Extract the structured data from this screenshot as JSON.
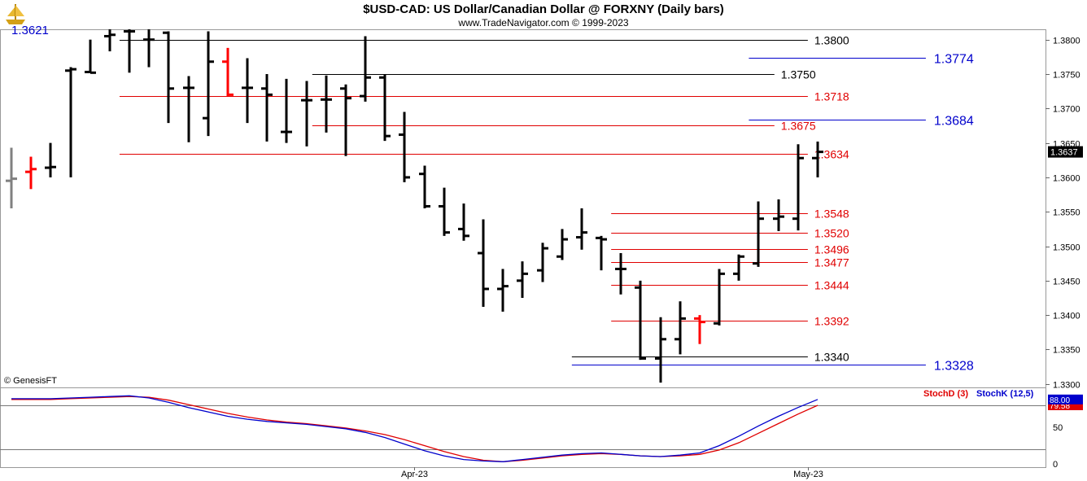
{
  "header": {
    "title": "$USD-CAD:  US Dollar/Canadian Dollar @ FORXNY  (Daily bars)",
    "subtitle": "www.TradeNavigator.com © 1999-2023",
    "logo_icon": "trade-navigator-ship-icon"
  },
  "footer": {
    "credit": "© GenesisFT"
  },
  "colors": {
    "bar": "#000000",
    "bar_down_red": "#ff0000",
    "bar_grey": "#808080",
    "line_black": "#000000",
    "line_red": "#e00000",
    "line_blue": "#0000cc",
    "stoch_d": "#e00000",
    "stoch_k": "#0000cc",
    "price_badge_bg": "#000000"
  },
  "chart_data": [
    {
      "type": "ohlc",
      "title": "$USD-CAD:  US Dollar/Canadian Dollar @ FORXNY  (Daily bars)",
      "price_axis": {
        "ylim": [
          1.3295,
          1.3815
        ],
        "ticks": [
          "1.3800",
          "1.3750",
          "1.3700",
          "1.3650",
          "1.3600",
          "1.3550",
          "1.3500",
          "1.3450",
          "1.3400",
          "1.3350",
          "1.3300"
        ]
      },
      "date_axis": {
        "labels": [
          {
            "text": "Apr-23",
            "index": 20.5
          },
          {
            "text": "May-23",
            "index": 40.5
          }
        ]
      },
      "last_price": "1.3637",
      "corner_label": "1.3621",
      "bars": [
        {
          "o": 1.3595,
          "h": 1.3643,
          "l": 1.3555,
          "c": 1.3598,
          "color": "grey"
        },
        {
          "o": 1.3608,
          "h": 1.363,
          "l": 1.3583,
          "c": 1.3612,
          "color": "red"
        },
        {
          "o": 1.3614,
          "h": 1.365,
          "l": 1.36,
          "c": 1.3615,
          "color": "black"
        },
        {
          "o": 1.3755,
          "h": 1.376,
          "l": 1.36,
          "c": 1.3757,
          "color": "black"
        },
        {
          "o": 1.3753,
          "h": 1.38,
          "l": 1.3752,
          "c": 1.3752,
          "color": "black"
        },
        {
          "o": 1.3805,
          "h": 1.3815,
          "l": 1.3783,
          "c": 1.3807,
          "color": "black"
        },
        {
          "o": 1.3812,
          "h": 1.3815,
          "l": 1.3752,
          "c": 1.3812,
          "color": "black"
        },
        {
          "o": 1.38,
          "h": 1.3815,
          "l": 1.376,
          "c": 1.38,
          "color": "black"
        },
        {
          "o": 1.381,
          "h": 1.3812,
          "l": 1.3679,
          "c": 1.3729,
          "color": "black"
        },
        {
          "o": 1.373,
          "h": 1.3747,
          "l": 1.3651,
          "c": 1.373,
          "color": "black"
        },
        {
          "o": 1.3686,
          "h": 1.3812,
          "l": 1.366,
          "c": 1.3768,
          "color": "black"
        },
        {
          "o": 1.3768,
          "h": 1.3788,
          "l": 1.3718,
          "c": 1.372,
          "color": "red"
        },
        {
          "o": 1.373,
          "h": 1.3773,
          "l": 1.3679,
          "c": 1.373,
          "color": "black"
        },
        {
          "o": 1.3729,
          "h": 1.375,
          "l": 1.3652,
          "c": 1.372,
          "color": "black"
        },
        {
          "o": 1.3666,
          "h": 1.3743,
          "l": 1.365,
          "c": 1.3666,
          "color": "black"
        },
        {
          "o": 1.3712,
          "h": 1.374,
          "l": 1.3645,
          "c": 1.3712,
          "color": "black"
        },
        {
          "o": 1.3713,
          "h": 1.3748,
          "l": 1.3665,
          "c": 1.3713,
          "color": "black"
        },
        {
          "o": 1.3729,
          "h": 1.3735,
          "l": 1.3631,
          "c": 1.3715,
          "color": "black"
        },
        {
          "o": 1.3718,
          "h": 1.3805,
          "l": 1.371,
          "c": 1.3745,
          "color": "black"
        },
        {
          "o": 1.3745,
          "h": 1.375,
          "l": 1.3653,
          "c": 1.366,
          "color": "black"
        },
        {
          "o": 1.3662,
          "h": 1.3695,
          "l": 1.3593,
          "c": 1.36,
          "color": "black"
        },
        {
          "o": 1.3605,
          "h": 1.3617,
          "l": 1.3555,
          "c": 1.3558,
          "color": "black"
        },
        {
          "o": 1.3558,
          "h": 1.3585,
          "l": 1.3515,
          "c": 1.352,
          "color": "black"
        },
        {
          "o": 1.3525,
          "h": 1.3562,
          "l": 1.3508,
          "c": 1.3515,
          "color": "black"
        },
        {
          "o": 1.349,
          "h": 1.3539,
          "l": 1.3412,
          "c": 1.3438,
          "color": "black"
        },
        {
          "o": 1.3438,
          "h": 1.3467,
          "l": 1.3405,
          "c": 1.3442,
          "color": "black"
        },
        {
          "o": 1.345,
          "h": 1.3478,
          "l": 1.3425,
          "c": 1.346,
          "color": "black"
        },
        {
          "o": 1.3465,
          "h": 1.3505,
          "l": 1.3448,
          "c": 1.3497,
          "color": "black"
        },
        {
          "o": 1.3485,
          "h": 1.3525,
          "l": 1.348,
          "c": 1.351,
          "color": "black"
        },
        {
          "o": 1.3513,
          "h": 1.3555,
          "l": 1.3495,
          "c": 1.352,
          "color": "black"
        },
        {
          "o": 1.3512,
          "h": 1.3515,
          "l": 1.3465,
          "c": 1.351,
          "color": "black"
        },
        {
          "o": 1.3467,
          "h": 1.349,
          "l": 1.343,
          "c": 1.3467,
          "color": "black"
        },
        {
          "o": 1.344,
          "h": 1.345,
          "l": 1.3335,
          "c": 1.3337,
          "color": "black"
        },
        {
          "o": 1.3337,
          "h": 1.3397,
          "l": 1.3302,
          "c": 1.3365,
          "color": "black"
        },
        {
          "o": 1.3365,
          "h": 1.342,
          "l": 1.3343,
          "c": 1.3395,
          "color": "black"
        },
        {
          "o": 1.3395,
          "h": 1.34,
          "l": 1.3358,
          "c": 1.339,
          "color": "red"
        },
        {
          "o": 1.3388,
          "h": 1.3467,
          "l": 1.3385,
          "c": 1.346,
          "color": "black"
        },
        {
          "o": 1.346,
          "h": 1.3488,
          "l": 1.345,
          "c": 1.3485,
          "color": "black"
        },
        {
          "o": 1.3475,
          "h": 1.3565,
          "l": 1.347,
          "c": 1.354,
          "color": "black"
        },
        {
          "o": 1.354,
          "h": 1.3568,
          "l": 1.3522,
          "c": 1.3543,
          "color": "black"
        },
        {
          "o": 1.354,
          "h": 1.3648,
          "l": 1.3523,
          "c": 1.3628,
          "color": "black"
        },
        {
          "o": 1.3628,
          "h": 1.3652,
          "l": 1.36,
          "c": 1.3637,
          "color": "black"
        }
      ],
      "levels": [
        {
          "value": 1.38,
          "label": "1.3800",
          "color": "black",
          "start": 5.5,
          "end": 40.5,
          "label_at": "right"
        },
        {
          "value": 1.3774,
          "label": "1.3774",
          "color": "blue",
          "start": 37.5,
          "end": 46.5,
          "label_at": "far"
        },
        {
          "value": 1.375,
          "label": "1.3750",
          "color": "black",
          "start": 15.3,
          "end": 38.8,
          "label_at": "mid"
        },
        {
          "value": 1.3718,
          "label": "1.3718",
          "color": "red",
          "start": 5.5,
          "end": 40.5,
          "label_at": "right"
        },
        {
          "value": 1.3684,
          "label": "1.3684",
          "color": "blue",
          "start": 37.5,
          "end": 46.5,
          "label_at": "far"
        },
        {
          "value": 1.3675,
          "label": "1.3675",
          "color": "red",
          "start": 15.3,
          "end": 38.8,
          "label_at": "mid"
        },
        {
          "value": 1.3634,
          "label": "1.3634",
          "color": "red",
          "start": 5.5,
          "end": 40.5,
          "label_at": "right"
        },
        {
          "value": 1.3548,
          "label": "1.3548",
          "color": "red",
          "start": 30.5,
          "end": 40.5,
          "label_at": "near"
        },
        {
          "value": 1.352,
          "label": "1.3520",
          "color": "red",
          "start": 30.5,
          "end": 40.5,
          "label_at": "near"
        },
        {
          "value": 1.3496,
          "label": "1.3496",
          "color": "red",
          "start": 30.5,
          "end": 40.5,
          "label_at": "near"
        },
        {
          "value": 1.3477,
          "label": "1.3477",
          "color": "red",
          "start": 30.5,
          "end": 40.5,
          "label_at": "near"
        },
        {
          "value": 1.3444,
          "label": "1.3444",
          "color": "red",
          "start": 30.5,
          "end": 40.5,
          "label_at": "near"
        },
        {
          "value": 1.3392,
          "label": "1.3392",
          "color": "red",
          "start": 30.5,
          "end": 40.5,
          "label_at": "near"
        },
        {
          "value": 1.334,
          "label": "1.3340",
          "color": "black",
          "start": 28.5,
          "end": 40.5,
          "label_at": "near"
        },
        {
          "value": 1.3328,
          "label": "1.3328",
          "color": "blue",
          "start": 28.5,
          "end": 46.5,
          "label_at": "far"
        }
      ]
    },
    {
      "type": "line",
      "title": "",
      "ylim": [
        0,
        100
      ],
      "ticks": [
        "50",
        "0"
      ],
      "reference_lines": [
        80,
        20
      ],
      "series": [
        {
          "name": "StochD (3)",
          "color": "red",
          "last_label": "79.58",
          "values": [
            88,
            88,
            88,
            89,
            90,
            91,
            92,
            91,
            87,
            81,
            75,
            69,
            64,
            60,
            57,
            55,
            52,
            49,
            45,
            40,
            33,
            25,
            17,
            10,
            5,
            3,
            5,
            8,
            11,
            13,
            14,
            13,
            11,
            10,
            11,
            13,
            19,
            29,
            42,
            55,
            68,
            80
          ]
        },
        {
          "name": "StochK (12,5)",
          "color": "blue",
          "last_label": "88.00",
          "values": [
            89,
            89,
            89,
            90,
            91,
            92,
            93,
            90,
            84,
            77,
            71,
            65,
            61,
            58,
            56,
            54,
            51,
            48,
            43,
            36,
            27,
            18,
            11,
            6,
            4,
            3,
            6,
            9,
            12,
            14,
            15,
            13,
            11,
            10,
            12,
            15,
            25,
            38,
            52,
            65,
            77,
            88
          ]
        }
      ]
    }
  ]
}
